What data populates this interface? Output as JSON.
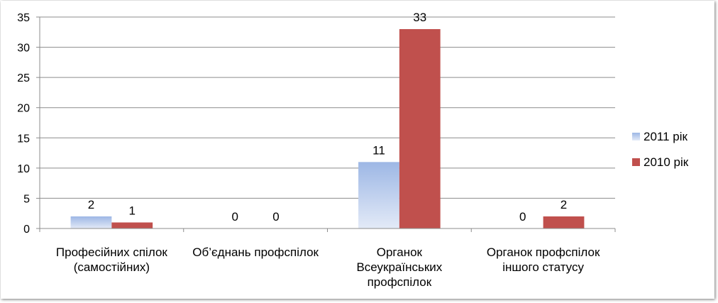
{
  "chart_data": {
    "type": "bar",
    "categories": [
      [
        "Професійних спілок",
        "(самостійних)"
      ],
      [
        "Об’єднань профспілок"
      ],
      [
        "Органок",
        "Всеукраїнських",
        "профспілок"
      ],
      [
        "Органок профспілок",
        "іншого статусу"
      ]
    ],
    "series": [
      {
        "name": "2011 рік",
        "values": [
          2,
          0,
          11,
          0
        ],
        "color": "#a8bfe6"
      },
      {
        "name": "2010 рік",
        "values": [
          1,
          0,
          33,
          2
        ],
        "color": "#c0504d"
      }
    ],
    "ylim": [
      0,
      35
    ],
    "yticks": [
      0,
      5,
      10,
      15,
      20,
      25,
      30,
      35
    ],
    "grid": true,
    "legend_position": "right"
  }
}
